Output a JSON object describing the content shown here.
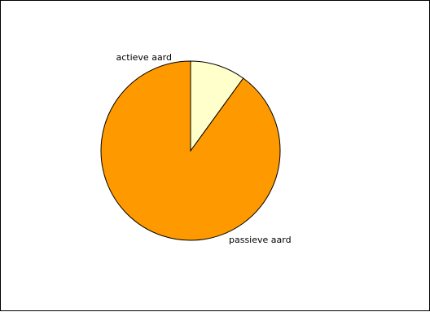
{
  "chart_data": {
    "type": "pie",
    "title": "",
    "slices": [
      {
        "label": "passieve aard",
        "value": 90,
        "color": "#FF9900"
      },
      {
        "label": "actieve aard",
        "value": 10,
        "color": "#FFFFCC"
      }
    ],
    "start_angle_deg": 0,
    "direction": "counterclockwise",
    "legend": "none",
    "label_placement": "outside",
    "stroke_color": "#000000"
  }
}
